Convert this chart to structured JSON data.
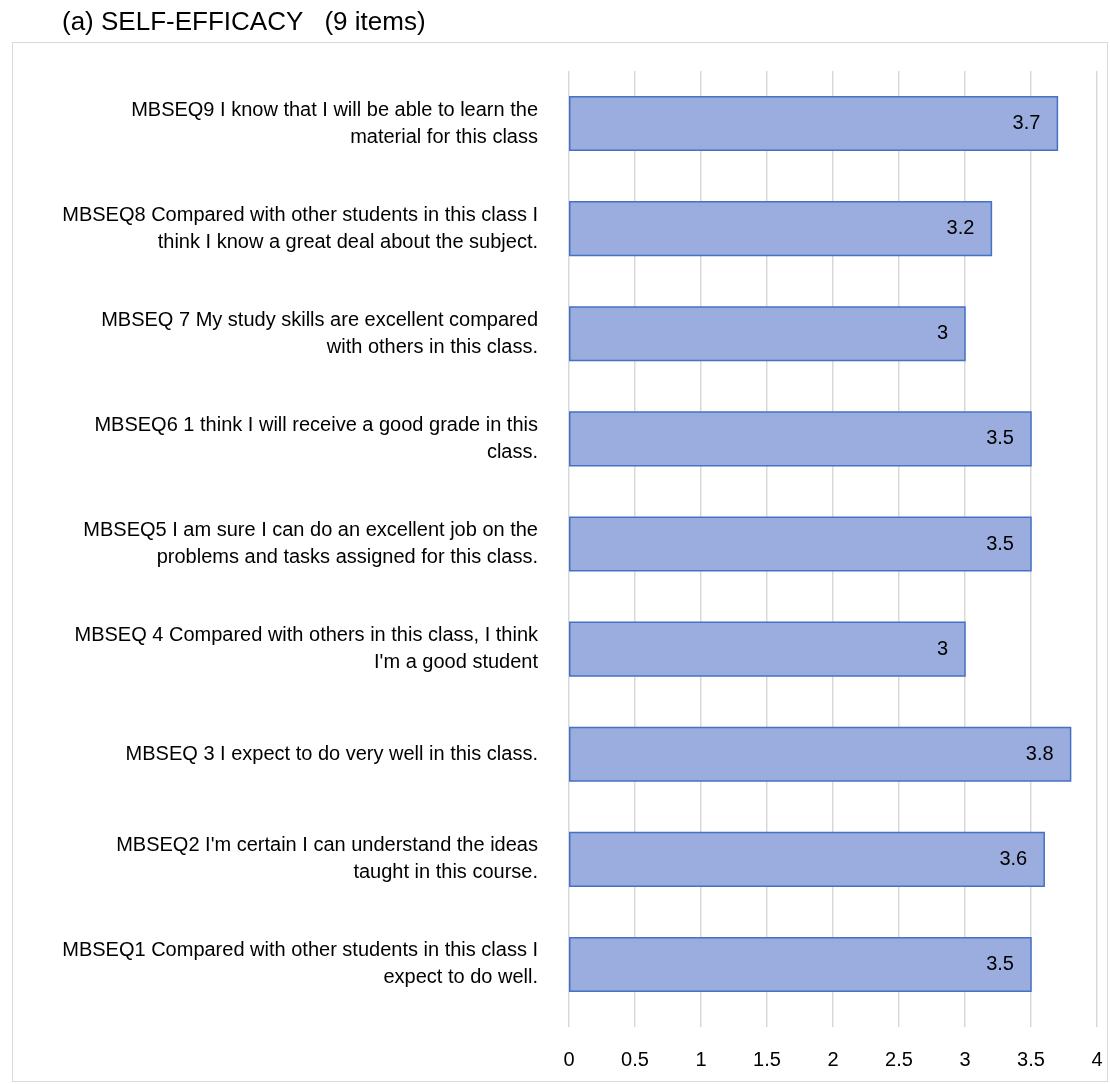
{
  "chart_data": {
    "type": "bar",
    "orientation": "horizontal",
    "title": "(a) SELF-EFFICACY   (9 items)",
    "categories": [
      "MBSEQ9 I know that I will be able to learn the material for this class",
      "MBSEQ8 Compared with other students in this class I think I know a great deal about the subject.",
      "MBSEQ 7 My study skills are excellent compared with others in this class.",
      "MBSEQ6 1 think I will receive a good grade in this class.",
      "MBSEQ5 I am sure I can do an excellent job on the problems and tasks assigned for this class.",
      "MBSEQ 4 Compared with others in this class, I think I'm a good student",
      "MBSEQ 3 I expect to do very well in this class.",
      "MBSEQ2 I'm certain I can understand the ideas taught in this course.",
      "MBSEQ1 Compared with other students in this class I expect to do well."
    ],
    "values": [
      3.7,
      3.2,
      3,
      3.5,
      3.5,
      3,
      3.8,
      3.6,
      3.5
    ],
    "color": "#9badde",
    "xlim": [
      0,
      4
    ],
    "xticks": [
      0,
      0.5,
      1,
      1.5,
      2,
      2.5,
      3,
      3.5,
      4
    ],
    "grid": "x",
    "data_labels": true
  }
}
